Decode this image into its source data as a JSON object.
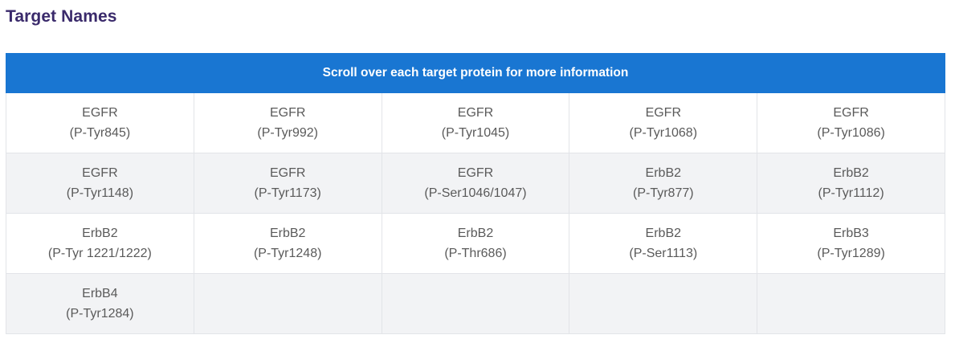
{
  "page": {
    "title": "Target Names"
  },
  "table": {
    "banner": "Scroll over each target protein for more information",
    "rows": [
      [
        {
          "name": "EGFR",
          "site": "(P-Tyr845)"
        },
        {
          "name": "EGFR",
          "site": "(P-Tyr992)"
        },
        {
          "name": "EGFR",
          "site": "(P-Tyr1045)"
        },
        {
          "name": "EGFR",
          "site": "(P-Tyr1068)"
        },
        {
          "name": "EGFR",
          "site": "(P-Tyr1086)"
        }
      ],
      [
        {
          "name": "EGFR",
          "site": "(P-Tyr1148)"
        },
        {
          "name": "EGFR",
          "site": "(P-Tyr1173)"
        },
        {
          "name": "EGFR",
          "site": "(P-Ser1046/1047)"
        },
        {
          "name": "ErbB2",
          "site": "(P-Tyr877)"
        },
        {
          "name": "ErbB2",
          "site": "(P-Tyr1112)"
        }
      ],
      [
        {
          "name": "ErbB2",
          "site": "(P-Tyr 1221/1222)"
        },
        {
          "name": "ErbB2",
          "site": "(P-Tyr1248)"
        },
        {
          "name": "ErbB2",
          "site": "(P-Thr686)"
        },
        {
          "name": "ErbB2",
          "site": "(P-Ser1113)"
        },
        {
          "name": "ErbB3",
          "site": "(P-Tyr1289)"
        }
      ],
      [
        {
          "name": "ErbB4",
          "site": "(P-Tyr1284)"
        },
        {
          "name": "",
          "site": ""
        },
        {
          "name": "",
          "site": ""
        },
        {
          "name": "",
          "site": ""
        },
        {
          "name": "",
          "site": ""
        }
      ]
    ]
  },
  "colors": {
    "heading": "#3a2a6b",
    "banner_bg": "#1976d2",
    "banner_text": "#ffffff",
    "cell_text": "#5a5a5a",
    "row_alt_bg": "#f2f3f5"
  }
}
